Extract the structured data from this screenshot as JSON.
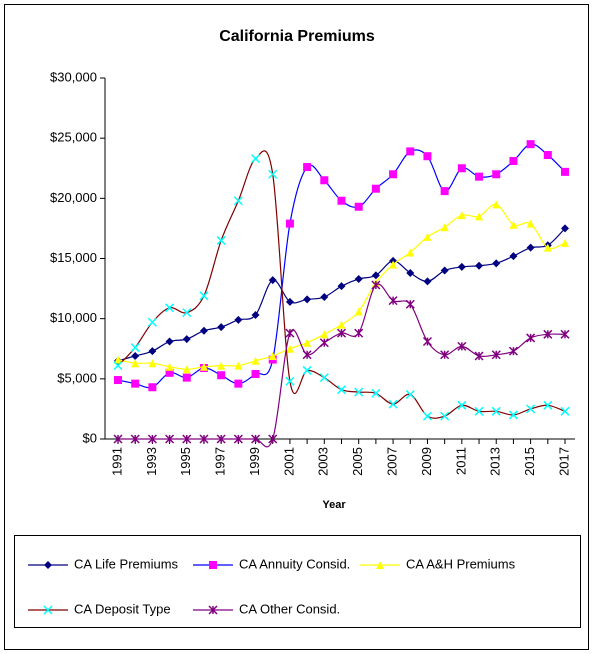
{
  "chart_data": {
    "type": "line",
    "title": "California Premiums",
    "x_label": "Year",
    "categories": [
      "1991",
      null,
      "1993",
      null,
      "1995",
      null,
      "1997",
      null,
      "1999",
      null,
      "2001",
      null,
      "2003",
      null,
      "2005",
      null,
      "2007",
      null,
      "2009",
      null,
      "2011",
      null,
      "2013",
      null,
      "2015",
      null,
      "2017"
    ],
    "ylim": [
      0,
      30000
    ],
    "yticks": [
      {
        "value": 0,
        "label": "$0"
      },
      {
        "value": 5000,
        "label": "$5,000"
      },
      {
        "value": 10000,
        "label": "$10,000"
      },
      {
        "value": 15000,
        "label": "$15,000"
      },
      {
        "value": 20000,
        "label": "$20,000"
      },
      {
        "value": 25000,
        "label": "$25,000"
      },
      {
        "value": 30000,
        "label": "$30,000"
      }
    ],
    "grid": false,
    "legend": "bottom",
    "series": [
      {
        "name": "CA Life Premiums",
        "color": "#000080",
        "marker_color": "#000080",
        "marker": "diamond",
        "values": [
          6500,
          6900,
          7300,
          8100,
          8300,
          9000,
          9300,
          9900,
          10300,
          13200,
          11400,
          11600,
          11800,
          12700,
          13300,
          13600,
          14800,
          13800,
          13100,
          14000,
          14300,
          14400,
          14600,
          15200,
          15900,
          16100,
          17500
        ]
      },
      {
        "name": "CA Annuity Consid.",
        "color": "#0000FF",
        "marker_color": "#FF00FF",
        "marker": "square",
        "values": [
          4900,
          4600,
          4300,
          5500,
          5100,
          5900,
          5300,
          4600,
          5400,
          6600,
          17900,
          22600,
          21500,
          19800,
          19300,
          20800,
          22000,
          23900,
          23500,
          20600,
          22500,
          21800,
          22000,
          23100,
          24500,
          23600,
          22200
        ]
      },
      {
        "name": "CA A&H Premiums",
        "color": "#FFFF00",
        "marker_color": "#FFFF00",
        "marker": "triangle",
        "values": [
          6600,
          6300,
          6300,
          6000,
          5800,
          6000,
          6100,
          6100,
          6500,
          6900,
          7500,
          8000,
          8700,
          9500,
          10600,
          13000,
          14500,
          15500,
          16800,
          17600,
          18600,
          18500,
          19500,
          17800,
          17900,
          15900,
          16300
        ]
      },
      {
        "name": "CA Deposit Type",
        "color": "#800000",
        "marker_color": "#00FFFF",
        "marker": "x",
        "values": [
          6100,
          7600,
          9700,
          10900,
          10500,
          11900,
          16500,
          19800,
          23300,
          22000,
          4800,
          5700,
          5100,
          4100,
          3900,
          3800,
          2900,
          3700,
          1900,
          1900,
          2800,
          2300,
          2300,
          2000,
          2500,
          2800,
          2300
        ]
      },
      {
        "name": "CA Other Consid.",
        "color": "#800080",
        "marker_color": "#800080",
        "marker": "star",
        "values": [
          0,
          0,
          0,
          0,
          0,
          0,
          0,
          0,
          0,
          0,
          8800,
          7000,
          8000,
          8800,
          8800,
          12800,
          11500,
          11200,
          8100,
          7000,
          7700,
          6900,
          7000,
          7300,
          8400,
          8700,
          8700
        ]
      }
    ]
  }
}
